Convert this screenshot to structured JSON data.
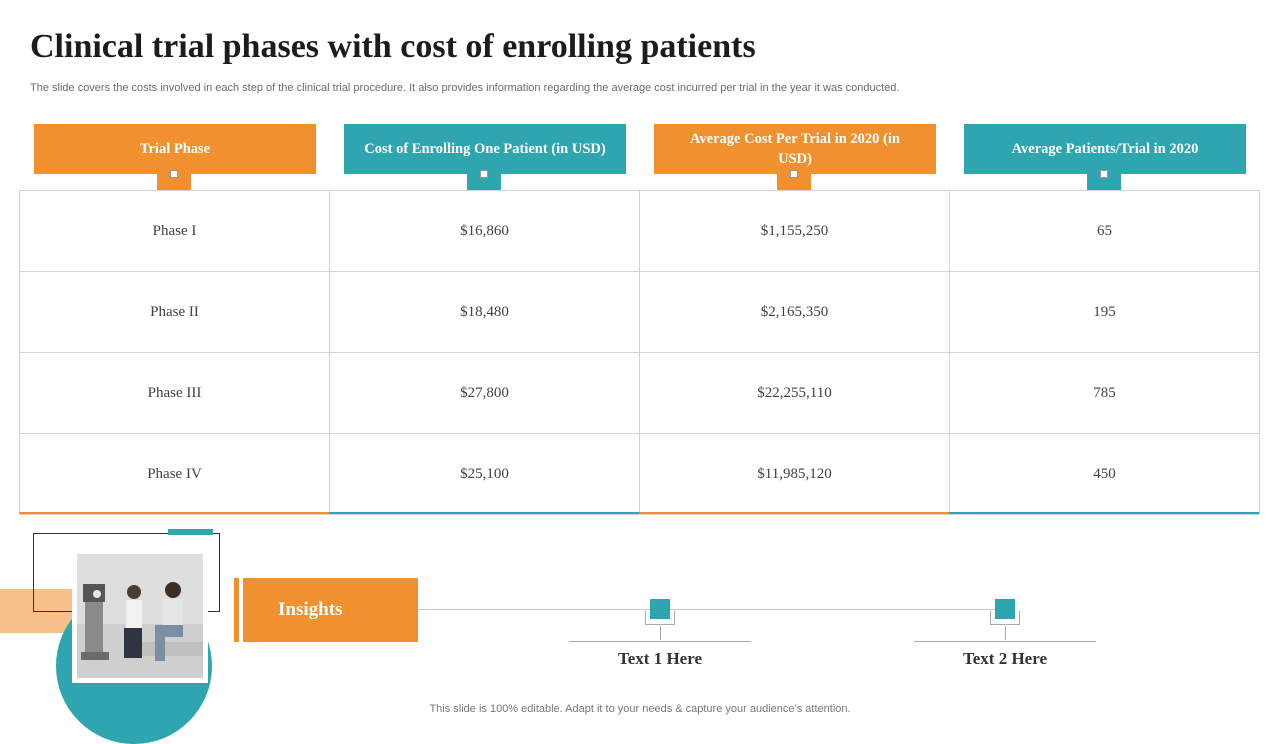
{
  "title": "Clinical trial phases with cost of enrolling patients",
  "subtitle": "The slide covers the costs involved in each step of the clinical trial procedure. It also provides information regarding the average cost incurred per trial in the year it was conducted.",
  "table": {
    "headers": [
      {
        "label": "Trial Phase",
        "color": "#F0902E"
      },
      {
        "label": "Cost of Enrolling  One Patient  (in  USD)",
        "color": "#2FA5B0"
      },
      {
        "label": "Average Cost Per Trial  in 2020 (in USD)",
        "color": "#F0902E"
      },
      {
        "label": "Average Patients/Trial in 2020",
        "color": "#2FA5B0"
      }
    ],
    "rows": [
      [
        "Phase I",
        "$16,860",
        "$1,155,250",
        "65"
      ],
      [
        "Phase II",
        "$18,480",
        "$2,165,350",
        "195"
      ],
      [
        "Phase III",
        "$27,800",
        "$22,255,110",
        "785"
      ],
      [
        "Phase IV",
        "$25,100",
        "$11,985,120",
        "450"
      ]
    ]
  },
  "insights": {
    "label": "Insights",
    "items": [
      "Text 1 Here",
      "Text 2 Here"
    ]
  },
  "footer": "This slide is 100% editable. Adapt it to your needs & capture your audience’s attention.",
  "colors": {
    "orange": "#F0902E",
    "teal": "#2FA5B0",
    "peach": "#F7C08A"
  }
}
